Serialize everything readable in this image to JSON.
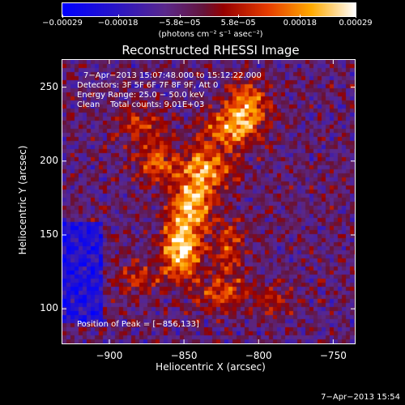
{
  "chart_data": {
    "type": "heatmap",
    "title": "Reconstructed RHESSI Image",
    "xlabel": "Heliocentric X (arcsec)",
    "ylabel": "Heliocentric Y (arcsec)",
    "xlim": [
      -932,
      -735
    ],
    "ylim": [
      76,
      269
    ],
    "x_ticks": [
      -900,
      -850,
      -800,
      -750
    ],
    "y_ticks": [
      100,
      150,
      200,
      250
    ],
    "x_tick_labels": [
      "−900",
      "−850",
      "−800",
      "−750"
    ],
    "y_tick_labels": [
      "100",
      "150",
      "200",
      "250"
    ],
    "colorbar": {
      "ticks": [
        -0.00029,
        -0.00018,
        -5.8e-05,
        5.8e-05,
        0.00018,
        0.00029
      ],
      "tick_labels": [
        "−0.00029",
        "−0.00018",
        "−5.8e−05",
        "5.8e−05",
        "0.00018",
        "0.00029"
      ],
      "units": "(photons cm⁻² s⁻¹ asec⁻²)",
      "colormap": "rainbow-to-hot",
      "range": [
        -0.00029,
        0.00029
      ]
    },
    "annotations": [
      "7−Apr−2013 15:07:48.000 to 15:12:22.000",
      "Detectors: 3F 5F 6F 7F 8F 9F, Att 0",
      "Energy Range: 25.0 − 50.0 keV",
      "Clean    Total counts: 9.01E+03"
    ],
    "peak": {
      "label": "Position of Peak = [−856,133]",
      "x": -856,
      "y": 133
    },
    "sources": [
      {
        "x": -852,
        "y": 140,
        "sx": 9,
        "sy": 14,
        "amp": 1.0
      },
      {
        "x": -845,
        "y": 170,
        "sx": 10,
        "sy": 12,
        "amp": 0.85
      },
      {
        "x": -835,
        "y": 195,
        "sx": 12,
        "sy": 10,
        "amp": 0.8
      },
      {
        "x": -818,
        "y": 222,
        "sx": 14,
        "sy": 9,
        "amp": 0.75
      },
      {
        "x": -808,
        "y": 240,
        "sx": 10,
        "sy": 10,
        "amp": 0.7
      },
      {
        "x": -868,
        "y": 200,
        "sx": 10,
        "sy": 10,
        "amp": 0.55
      },
      {
        "x": -880,
        "y": 225,
        "sx": 12,
        "sy": 7,
        "amp": 0.45
      },
      {
        "x": -820,
        "y": 140,
        "sx": 8,
        "sy": 14,
        "amp": 0.45
      },
      {
        "x": -825,
        "y": 110,
        "sx": 12,
        "sy": 8,
        "amp": 0.5
      },
      {
        "x": -790,
        "y": 105,
        "sx": 10,
        "sy": 8,
        "amp": 0.35
      },
      {
        "x": -880,
        "y": 120,
        "sx": 10,
        "sy": 8,
        "amp": 0.4
      }
    ]
  },
  "footer": {
    "date": "7−Apr−2013 15:54"
  },
  "colors": {
    "background": "#000000",
    "axes": "#ffffff"
  }
}
